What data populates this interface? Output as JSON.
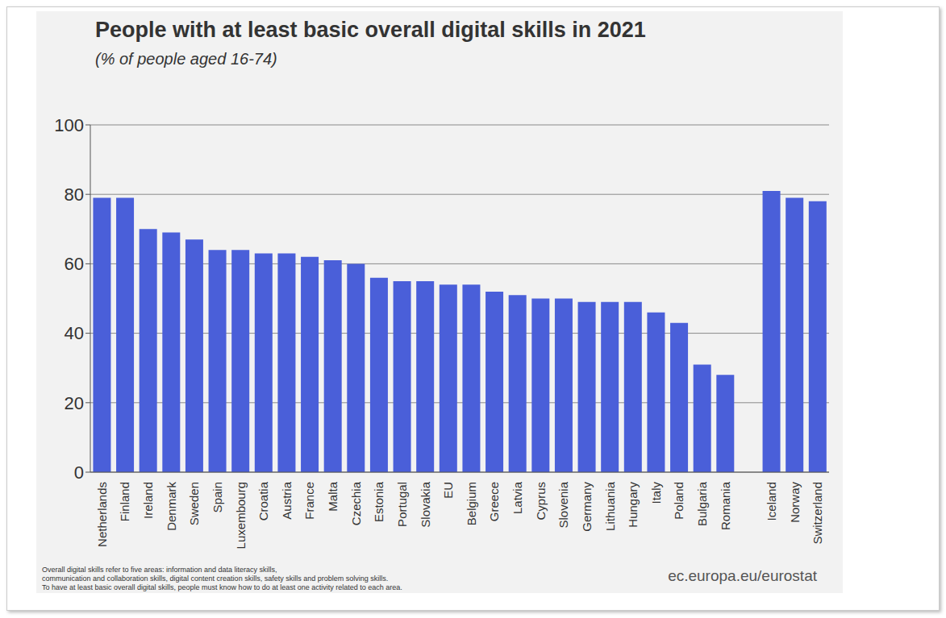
{
  "chart_data": {
    "type": "bar",
    "title": "People with at least basic overall digital skills in 2021",
    "subtitle": "(% of people aged 16-74)",
    "categories": [
      "Netherlands",
      "Finland",
      "Ireland",
      "Denmark",
      "Sweden",
      "Spain",
      "Luxembourg",
      "Croatia",
      "Austria",
      "France",
      "Malta",
      "Czechia",
      "Estonia",
      "Portugal",
      "Slovakia",
      "EU",
      "Belgium",
      "Greece",
      "Latvia",
      "Cyprus",
      "Slovenia",
      "Germany",
      "Lithuania",
      "Hungary",
      "Italy",
      "Poland",
      "Bulgaria",
      "Romania",
      null,
      "Iceland",
      "Norway",
      "Switzerland"
    ],
    "values": [
      79,
      79,
      70,
      69,
      67,
      64,
      64,
      63,
      63,
      62,
      61,
      60,
      56,
      55,
      55,
      54,
      54,
      52,
      51,
      50,
      50,
      49,
      49,
      49,
      46,
      43,
      31,
      28,
      null,
      81,
      79,
      78
    ],
    "color": "#4a5fd9",
    "ylim": [
      0,
      100
    ],
    "yticks": [
      0,
      20,
      40,
      60,
      80,
      100
    ],
    "grid": true,
    "footnote": [
      "Overall digital skills refer to five areas: information and data literacy skills,",
      "communication and collaboration skills, digital content creation skills, safety skills and problem solving skills.",
      "To have at least basic overall digital skills, people must know how to do at least one activity related to each area."
    ],
    "source": "ec.europa.eu/eurostat"
  }
}
